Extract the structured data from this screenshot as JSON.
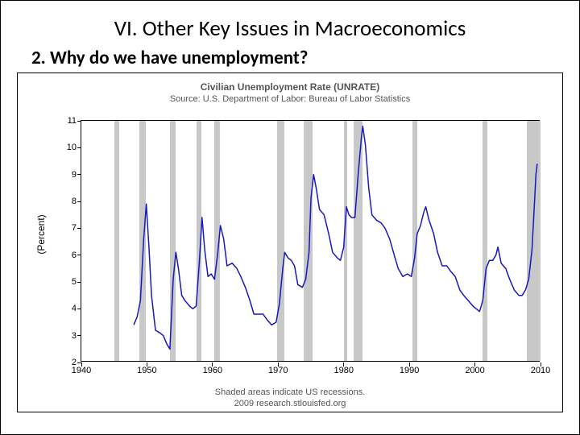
{
  "slide": {
    "title": "VI. Other Key Issues in Macroeconomics",
    "title_fontsize": 27,
    "title_color": "#000000",
    "subtitle": "2.  Why do we have unemployment?",
    "subtitle_fontsize": 23,
    "subtitle_color": "#000000"
  },
  "chart": {
    "type": "line",
    "title": "Civilian Unemployment Rate (UNRATE)",
    "title_fontsize": 12,
    "title_color": "#555555",
    "source": "Source: U.S. Department of Labor: Bureau of Labor Statistics",
    "source_fontsize": 11,
    "source_color": "#555555",
    "footer1": "Shaded areas indicate US recessions.",
    "footer2": "2009 research.stlouisfed.org",
    "footer_fontsize": 11,
    "footer_color": "#555555",
    "ylabel": "(Percent)",
    "ylabel_fontsize": 12,
    "xlim": [
      1940,
      2010
    ],
    "ylim": [
      2,
      11
    ],
    "xticks": [
      1940,
      1950,
      1960,
      1970,
      1980,
      1990,
      2000,
      2010
    ],
    "yticks": [
      2,
      3,
      4,
      5,
      6,
      7,
      8,
      9,
      10,
      11
    ],
    "tick_fontsize": 11,
    "tick_color": "#000000",
    "plot_border_color": "#000000",
    "background_color": "#ffffff",
    "line_color": "#1818c0",
    "line_width": 1.5,
    "recession_color": "#c8c8c8",
    "recessions": [
      [
        1945.0,
        1945.8
      ],
      [
        1948.9,
        1949.8
      ],
      [
        1953.5,
        1954.4
      ],
      [
        1957.6,
        1958.3
      ],
      [
        1960.3,
        1961.1
      ],
      [
        1969.9,
        1970.9
      ],
      [
        1973.9,
        1975.2
      ],
      [
        1980.0,
        1980.5
      ],
      [
        1981.5,
        1982.9
      ],
      [
        1990.5,
        1991.2
      ],
      [
        2001.2,
        2001.9
      ],
      [
        2007.9,
        2010.0
      ]
    ],
    "series": [
      [
        1948.0,
        3.4
      ],
      [
        1948.5,
        3.7
      ],
      [
        1949.0,
        4.3
      ],
      [
        1949.5,
        6.6
      ],
      [
        1949.9,
        7.9
      ],
      [
        1950.3,
        6.3
      ],
      [
        1950.7,
        4.5
      ],
      [
        1951.3,
        3.2
      ],
      [
        1952.0,
        3.1
      ],
      [
        1952.5,
        3.0
      ],
      [
        1953.0,
        2.7
      ],
      [
        1953.5,
        2.5
      ],
      [
        1954.0,
        5.1
      ],
      [
        1954.4,
        6.1
      ],
      [
        1954.8,
        5.5
      ],
      [
        1955.3,
        4.5
      ],
      [
        1955.8,
        4.3
      ],
      [
        1956.5,
        4.1
      ],
      [
        1957.0,
        4.0
      ],
      [
        1957.5,
        4.1
      ],
      [
        1958.0,
        5.8
      ],
      [
        1958.4,
        7.4
      ],
      [
        1958.8,
        6.2
      ],
      [
        1959.3,
        5.2
      ],
      [
        1959.8,
        5.3
      ],
      [
        1960.3,
        5.1
      ],
      [
        1960.8,
        6.1
      ],
      [
        1961.2,
        7.1
      ],
      [
        1961.7,
        6.6
      ],
      [
        1962.2,
        5.6
      ],
      [
        1963.0,
        5.7
      ],
      [
        1963.7,
        5.5
      ],
      [
        1964.3,
        5.2
      ],
      [
        1965.0,
        4.8
      ],
      [
        1965.7,
        4.3
      ],
      [
        1966.3,
        3.8
      ],
      [
        1967.0,
        3.8
      ],
      [
        1967.7,
        3.8
      ],
      [
        1968.3,
        3.6
      ],
      [
        1969.0,
        3.4
      ],
      [
        1969.7,
        3.5
      ],
      [
        1970.2,
        4.2
      ],
      [
        1970.7,
        5.5
      ],
      [
        1971.0,
        6.1
      ],
      [
        1971.5,
        5.9
      ],
      [
        1972.0,
        5.8
      ],
      [
        1972.5,
        5.6
      ],
      [
        1973.0,
        4.9
      ],
      [
        1973.7,
        4.8
      ],
      [
        1974.2,
        5.1
      ],
      [
        1974.7,
        6.1
      ],
      [
        1975.0,
        8.1
      ],
      [
        1975.4,
        9.0
      ],
      [
        1975.8,
        8.5
      ],
      [
        1976.3,
        7.7
      ],
      [
        1977.0,
        7.5
      ],
      [
        1977.7,
        6.8
      ],
      [
        1978.3,
        6.1
      ],
      [
        1979.0,
        5.9
      ],
      [
        1979.5,
        5.8
      ],
      [
        1980.0,
        6.3
      ],
      [
        1980.4,
        7.8
      ],
      [
        1980.8,
        7.5
      ],
      [
        1981.2,
        7.4
      ],
      [
        1981.7,
        7.4
      ],
      [
        1982.2,
        9.0
      ],
      [
        1982.7,
        10.4
      ],
      [
        1982.9,
        10.8
      ],
      [
        1983.3,
        10.1
      ],
      [
        1983.8,
        8.5
      ],
      [
        1984.3,
        7.5
      ],
      [
        1985.0,
        7.3
      ],
      [
        1985.7,
        7.2
      ],
      [
        1986.3,
        7.0
      ],
      [
        1987.0,
        6.6
      ],
      [
        1987.7,
        6.0
      ],
      [
        1988.3,
        5.5
      ],
      [
        1989.0,
        5.2
      ],
      [
        1989.7,
        5.3
      ],
      [
        1990.3,
        5.2
      ],
      [
        1990.8,
        5.9
      ],
      [
        1991.2,
        6.8
      ],
      [
        1991.7,
        7.1
      ],
      [
        1992.2,
        7.6
      ],
      [
        1992.5,
        7.8
      ],
      [
        1993.0,
        7.3
      ],
      [
        1993.7,
        6.8
      ],
      [
        1994.3,
        6.1
      ],
      [
        1995.0,
        5.6
      ],
      [
        1995.7,
        5.6
      ],
      [
        1996.3,
        5.4
      ],
      [
        1997.0,
        5.2
      ],
      [
        1997.7,
        4.7
      ],
      [
        1998.3,
        4.5
      ],
      [
        1999.0,
        4.3
      ],
      [
        1999.7,
        4.1
      ],
      [
        2000.2,
        4.0
      ],
      [
        2000.7,
        3.9
      ],
      [
        2001.2,
        4.3
      ],
      [
        2001.7,
        5.5
      ],
      [
        2002.2,
        5.8
      ],
      [
        2002.7,
        5.8
      ],
      [
        2003.2,
        6.0
      ],
      [
        2003.5,
        6.3
      ],
      [
        2004.0,
        5.7
      ],
      [
        2004.7,
        5.5
      ],
      [
        2005.3,
        5.1
      ],
      [
        2006.0,
        4.7
      ],
      [
        2006.7,
        4.5
      ],
      [
        2007.2,
        4.5
      ],
      [
        2007.7,
        4.7
      ],
      [
        2008.2,
        5.1
      ],
      [
        2008.7,
        6.2
      ],
      [
        2009.0,
        7.6
      ],
      [
        2009.3,
        9.0
      ],
      [
        2009.5,
        9.4
      ]
    ]
  }
}
